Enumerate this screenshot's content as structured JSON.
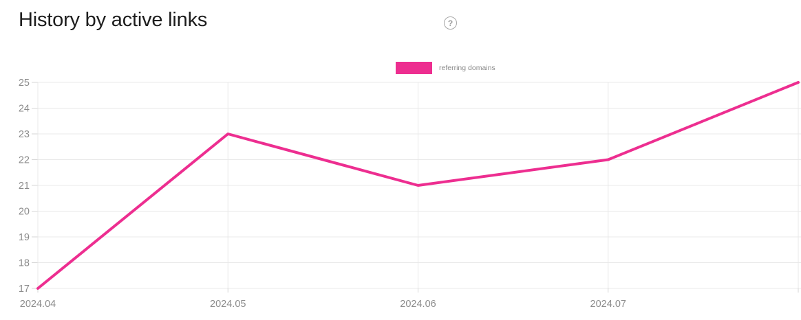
{
  "page": {
    "title": "History by active links",
    "help_icon_glyph": "?"
  },
  "legend": {
    "label": "referring domains",
    "swatch_color": "#ed2e90"
  },
  "chart_data": {
    "type": "line",
    "categories": [
      "2024.04",
      "2024.05",
      "2024.06",
      "2024.07",
      ""
    ],
    "series": [
      {
        "name": "referring domains",
        "color": "#ed2e90",
        "values": [
          17,
          23,
          21,
          22,
          25
        ]
      }
    ],
    "title": "History by active links",
    "xlabel": "",
    "ylabel": "",
    "ylim": [
      17,
      25
    ],
    "y_ticks": [
      17,
      18,
      19,
      20,
      21,
      22,
      23,
      24,
      25
    ],
    "grid": true,
    "legend_position": "top-center",
    "colors": {
      "line": "#ed2e90",
      "gridline": "#e8e8e8",
      "tick": "#d6d6d6",
      "axis_label": "#8c8c8c",
      "title": "#1d1d1d",
      "legend_text": "#8a8a8a",
      "help_icon": "#a6a6a6"
    }
  }
}
